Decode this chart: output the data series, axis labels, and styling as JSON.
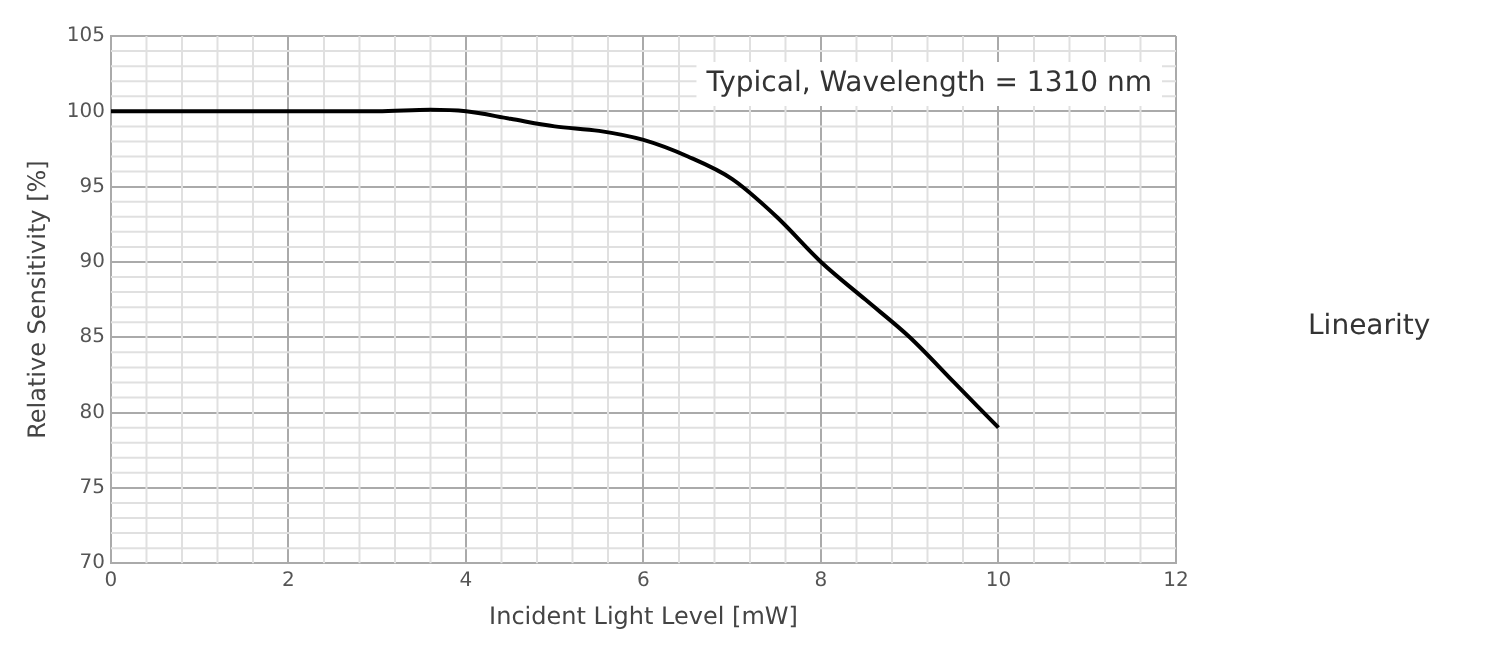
{
  "chart_data": {
    "type": "line",
    "title": "Linearity",
    "xlabel": "Incident Light Level [mW]",
    "ylabel": "Relative Sensitivity [%]",
    "annotations": [
      "Typical, Wavelength = 1310 nm"
    ],
    "x": [
      0,
      3,
      3.6,
      4,
      4.5,
      5,
      5.5,
      6,
      6.5,
      7,
      7.5,
      8,
      8.5,
      9,
      9.5,
      10
    ],
    "series": [
      {
        "color": "#000000",
        "values": [
          100,
          100,
          100.1,
          100,
          99.5,
          99,
          98.7,
          98.1,
          97,
          95.5,
          93,
          90,
          87.5,
          85,
          82,
          79
        ]
      }
    ],
    "xlim": [
      0,
      12
    ],
    "xticks": [
      0,
      2,
      4,
      6,
      8,
      10,
      12
    ],
    "ylim": [
      70,
      105
    ],
    "yticks": [
      70,
      75,
      80,
      85,
      90,
      95,
      100,
      105
    ],
    "grid": true,
    "legend": false,
    "marker": "none",
    "line_style": "solid"
  }
}
